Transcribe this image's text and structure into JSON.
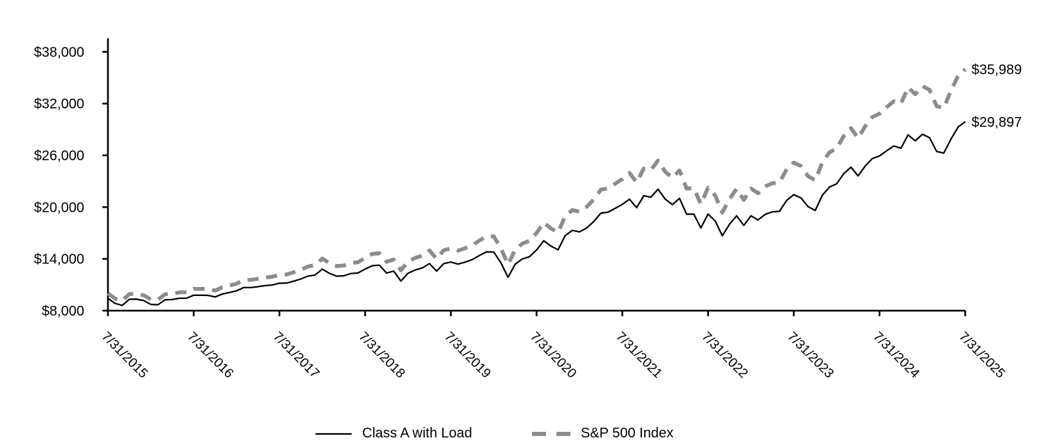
{
  "chart_data": {
    "type": "line",
    "x_frequency": "monthly",
    "x_range": [
      "7/31/2015",
      "7/31/2025"
    ],
    "x_tick_labels": [
      "7/31/2015",
      "7/31/2016",
      "7/31/2017",
      "7/31/2018",
      "7/31/2019",
      "7/31/2020",
      "7/31/2021",
      "7/31/2022",
      "7/31/2023",
      "7/31/2024",
      "7/31/2025"
    ],
    "y_tick_labels": [
      "$8,000",
      "$14,000",
      "$20,000",
      "$26,000",
      "$32,000",
      "$38,000"
    ],
    "y_min": 8000,
    "y_max": 38000,
    "y_step": 6000,
    "grid": false,
    "legend_position": "bottom",
    "axis_color": "#000000",
    "series": [
      {
        "name": "Class A with Load",
        "color": "#000000",
        "style": "solid",
        "width": 2.2,
        "end_label": "$29,897",
        "start_value": 9425,
        "end_value": 29897,
        "values": [
          9425,
          8839,
          8609,
          9327,
          9336,
          9177,
          8715,
          8683,
          9260,
          9289,
          9435,
          9448,
          9789,
          9781,
          9774,
          9588,
          9919,
          10105,
          10290,
          10677,
          10678,
          10779,
          10909,
          10967,
          11184,
          11195,
          11416,
          11674,
          12007,
          12130,
          12817,
          12324,
          11998,
          12035,
          12302,
          12366,
          12817,
          13211,
          13273,
          12357,
          12583,
          11433,
          12338,
          12711,
          12945,
          13459,
          12579,
          13452,
          13635,
          13394,
          13630,
          13915,
          14394,
          14813,
          14795,
          13557,
          11866,
          13376,
          13988,
          14252,
          15043,
          16105,
          15480,
          15058,
          16685,
          17312,
          17127,
          17581,
          18335,
          19305,
          19419,
          19859,
          20320,
          20918,
          19931,
          21319,
          21151,
          22083,
          20931,
          20284,
          21018,
          19178,
          19188,
          17585,
          19195,
          18389,
          16678,
          18018,
          18996,
          17883,
          18996,
          18508,
          19165,
          19454,
          19510,
          20783,
          21439,
          21068,
          20051,
          19619,
          21377,
          22333,
          22698,
          23882,
          24634,
          23619,
          24764,
          25634,
          25935,
          26539,
          27086,
          26830,
          28380,
          27683,
          28444,
          28051,
          26448,
          26258,
          27885,
          29282,
          29897
        ]
      },
      {
        "name": "S&P 500 Index",
        "color": "#8C8C8C",
        "style": "dashed",
        "width": 5.5,
        "end_label": "$35,989",
        "start_value": 10000,
        "end_value": 35989,
        "values": [
          10000,
          9388,
          9153,
          9928,
          9948,
          9788,
          9305,
          9280,
          9908,
          9949,
          10117,
          10141,
          10518,
          10521,
          10523,
          10334,
          10703,
          10914,
          11126,
          11557,
          11570,
          11692,
          11845,
          11920,
          12169,
          12194,
          12448,
          12743,
          13120,
          13269,
          14035,
          13509,
          13165,
          13221,
          13527,
          13612,
          14124,
          14573,
          14657,
          13660,
          13925,
          12666,
          13683,
          14111,
          14385,
          14973,
          14009,
          14997,
          15216,
          14963,
          15243,
          15578,
          16132,
          16618,
          16616,
          15241,
          13354,
          15070,
          15776,
          16090,
          17002,
          18220,
          17532,
          17072,
          18936,
          19669,
          19478,
          20017,
          20897,
          22025,
          22179,
          22706,
          23257,
          23967,
          22861,
          24478,
          24310,
          25408,
          24108,
          23386,
          24260,
          22159,
          22193,
          20361,
          22249,
          21337,
          19373,
          20951,
          22110,
          20838,
          22157,
          21611,
          22402,
          22763,
          22854,
          24370,
          25166,
          24757,
          23586,
          23102,
          25199,
          26353,
          26812,
          28241,
          29160,
          27988,
          29376,
          30440,
          30831,
          31581,
          32267,
          31996,
          33879,
          33082,
          34027,
          33592,
          31706,
          31511,
          33500,
          35214,
          35989
        ]
      }
    ]
  }
}
